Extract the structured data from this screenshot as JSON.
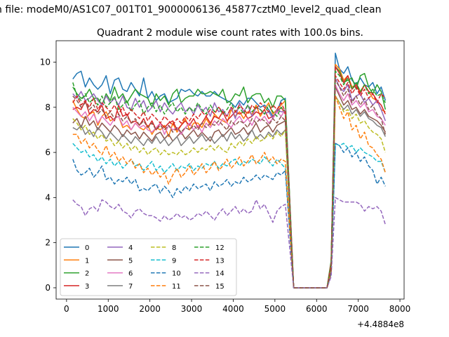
{
  "figure": {
    "suptitle": "n file: modeM0/AS1C07_001T01_9000006136_45877cztM0_level2_quad_clean",
    "title": "Quadrant 2 module wise count rates with 100.0s bins.",
    "offset_label": "+4.4884e8"
  },
  "chart_data": {
    "type": "line",
    "title": "Quadrant 2 module wise count rates with 100.0s bins.",
    "xlabel": "",
    "ylabel": "",
    "x_offset": 448840000,
    "xlim": [
      -250,
      8100
    ],
    "ylim": [
      -0.5,
      10.95
    ],
    "xticks": [
      0,
      1000,
      2000,
      3000,
      4000,
      5000,
      6000,
      7000,
      8000
    ],
    "yticks": [
      0,
      2,
      4,
      6,
      8,
      10
    ],
    "grid": false,
    "legend": {
      "placement": "lower-left",
      "columns": 4
    },
    "x": [
      150,
      250,
      350,
      450,
      550,
      650,
      750,
      850,
      950,
      1050,
      1150,
      1250,
      1350,
      1450,
      1550,
      1650,
      1750,
      1850,
      1950,
      2050,
      2150,
      2250,
      2350,
      2450,
      2550,
      2650,
      2750,
      2850,
      2950,
      3050,
      3150,
      3250,
      3350,
      3450,
      3550,
      3650,
      3750,
      3850,
      3950,
      4050,
      4150,
      4250,
      4350,
      4450,
      4550,
      4650,
      4750,
      4850,
      4950,
      5050,
      5150,
      5250,
      5450,
      6250,
      6350,
      6450,
      6550,
      6650,
      6750,
      6850,
      6950,
      7050,
      7150,
      7250,
      7350,
      7450,
      7550,
      7650
    ],
    "series": [
      {
        "name": "0",
        "color": "#1f77b4",
        "dash": false,
        "values": [
          9.25,
          9.5,
          9.6,
          8.9,
          9.3,
          9.0,
          8.8,
          9.0,
          9.4,
          8.6,
          9.2,
          9.3,
          8.8,
          8.7,
          9.1,
          8.8,
          8.5,
          9.3,
          8.4,
          8.7,
          8.3,
          8.5,
          8.6,
          8.2,
          8.3,
          8.4,
          8.8,
          8.7,
          8.8,
          8.6,
          8.5,
          8.7,
          8.5,
          8.5,
          8.7,
          8.5,
          8.4,
          8.3,
          8.2,
          8.0,
          8.3,
          8.1,
          8.4,
          8.4,
          8.2,
          8.0,
          8.1,
          7.9,
          7.6,
          7.8,
          8.3,
          8.4,
          0.0,
          0.0,
          1.0,
          10.4,
          9.7,
          9.5,
          9.8,
          9.2,
          9.0,
          9.3,
          9.0,
          8.9,
          9.1,
          8.6,
          8.9,
          8.3
        ]
      },
      {
        "name": "1",
        "color": "#ff7f0e",
        "dash": false,
        "values": [
          8.3,
          7.9,
          7.6,
          7.5,
          7.7,
          7.8,
          7.2,
          7.6,
          7.8,
          7.4,
          7.5,
          7.6,
          7.1,
          7.2,
          7.0,
          7.3,
          7.1,
          7.0,
          7.2,
          6.8,
          7.1,
          7.0,
          7.2,
          6.7,
          7.3,
          6.9,
          7.2,
          7.5,
          7.0,
          7.3,
          7.3,
          7.1,
          7.5,
          7.2,
          7.7,
          7.5,
          7.4,
          7.3,
          7.9,
          7.6,
          7.8,
          7.5,
          7.8,
          7.7,
          8.1,
          7.6,
          7.9,
          8.2,
          7.7,
          7.9,
          8.1,
          8.3,
          0.0,
          0.0,
          1.0,
          9.9,
          9.7,
          9.2,
          9.4,
          8.9,
          9.0,
          8.7,
          9.0,
          8.7,
          8.4,
          8.3,
          7.9,
          7.8
        ]
      },
      {
        "name": "2",
        "color": "#2ca02c",
        "dash": false,
        "values": [
          8.9,
          8.6,
          8.4,
          8.5,
          8.8,
          8.4,
          8.4,
          8.1,
          8.6,
          8.3,
          8.9,
          8.4,
          8.6,
          8.2,
          8.5,
          8.8,
          8.6,
          8.5,
          8.4,
          8.0,
          8.6,
          8.3,
          8.5,
          8.1,
          8.6,
          8.8,
          8.2,
          8.4,
          8.5,
          8.5,
          8.8,
          8.6,
          8.6,
          8.7,
          8.6,
          8.5,
          8.8,
          8.2,
          8.3,
          8.6,
          8.5,
          8.9,
          8.2,
          8.5,
          8.6,
          8.6,
          8.2,
          8.4,
          8.0,
          8.5,
          8.5,
          8.3,
          0.0,
          0.0,
          1.2,
          9.8,
          9.6,
          9.1,
          9.2,
          9.3,
          8.8,
          9.4,
          9.5,
          8.9,
          8.6,
          9.0,
          8.7,
          7.9
        ]
      },
      {
        "name": "3",
        "color": "#d62728",
        "dash": false,
        "values": [
          7.9,
          8.0,
          7.9,
          8.3,
          7.7,
          7.9,
          7.8,
          8.1,
          7.5,
          7.6,
          7.4,
          8.1,
          7.6,
          7.7,
          7.3,
          7.4,
          7.2,
          7.5,
          7.1,
          7.4,
          7.0,
          7.3,
          7.1,
          7.3,
          7.4,
          7.0,
          7.2,
          7.4,
          7.2,
          7.5,
          7.1,
          7.3,
          7.6,
          7.3,
          7.6,
          7.5,
          7.8,
          7.4,
          7.6,
          7.8,
          7.7,
          7.8,
          7.5,
          7.6,
          7.8,
          7.7,
          7.9,
          7.5,
          7.6,
          7.8,
          8.0,
          7.7,
          0.0,
          0.0,
          1.1,
          9.8,
          9.5,
          9.1,
          9.4,
          8.8,
          9.0,
          8.6,
          9.0,
          8.7,
          8.6,
          8.3,
          8.1,
          7.7
        ]
      },
      {
        "name": "4",
        "color": "#9467bd",
        "dash": false,
        "values": [
          8.6,
          8.4,
          8.7,
          8.3,
          8.4,
          8.6,
          8.3,
          8.1,
          8.5,
          8.2,
          8.4,
          8.1,
          8.5,
          8.0,
          7.9,
          8.4,
          8.0,
          8.3,
          7.8,
          8.0,
          8.3,
          7.8,
          8.2,
          7.9,
          7.7,
          8.0,
          8.2,
          7.8,
          8.0,
          7.7,
          8.1,
          7.8,
          8.0,
          7.6,
          8.2,
          7.8,
          7.9,
          7.6,
          8.0,
          7.5,
          8.2,
          7.8,
          8.1,
          7.6,
          8.0,
          7.9,
          7.7,
          7.8,
          7.5,
          7.9,
          7.8,
          7.8,
          0.0,
          0.0,
          0.9,
          9.3,
          8.9,
          8.7,
          9.0,
          8.3,
          8.5,
          8.6,
          8.2,
          8.4,
          8.1,
          8.3,
          7.9,
          7.4
        ]
      },
      {
        "name": "5",
        "color": "#8c564b",
        "dash": false,
        "values": [
          7.3,
          7.5,
          7.1,
          7.6,
          7.2,
          7.4,
          7.0,
          7.3,
          7.1,
          6.9,
          7.2,
          7.0,
          6.7,
          7.0,
          6.8,
          6.9,
          6.6,
          6.9,
          6.7,
          6.5,
          6.8,
          6.9,
          6.6,
          6.8,
          6.5,
          6.7,
          6.9,
          6.6,
          6.8,
          7.0,
          6.7,
          6.9,
          6.7,
          6.5,
          6.9,
          7.0,
          6.7,
          6.9,
          7.1,
          6.8,
          6.9,
          7.1,
          6.8,
          7.0,
          7.3,
          6.9,
          7.1,
          7.2,
          6.9,
          7.2,
          7.3,
          7.4,
          0.0,
          0.0,
          0.8,
          8.9,
          8.5,
          8.1,
          8.3,
          7.9,
          8.0,
          7.7,
          7.9,
          7.6,
          7.5,
          7.4,
          7.2,
          6.9
        ]
      },
      {
        "name": "6",
        "color": "#e377c2",
        "dash": false,
        "values": [
          8.0,
          7.8,
          7.6,
          7.8,
          7.4,
          7.7,
          7.3,
          7.6,
          7.4,
          7.2,
          7.5,
          7.6,
          7.2,
          7.4,
          7.0,
          7.3,
          7.1,
          7.2,
          7.0,
          6.9,
          7.1,
          7.3,
          6.8,
          7.2,
          7.0,
          7.1,
          6.8,
          7.1,
          7.3,
          7.0,
          7.2,
          6.9,
          7.3,
          7.1,
          7.4,
          7.2,
          7.5,
          7.3,
          7.1,
          7.4,
          7.6,
          7.3,
          7.5,
          7.2,
          7.6,
          7.4,
          7.6,
          7.3,
          7.5,
          7.8,
          7.6,
          7.9,
          0.0,
          0.0,
          0.9,
          9.0,
          8.6,
          8.3,
          8.6,
          8.1,
          8.3,
          8.0,
          8.2,
          7.8,
          7.9,
          7.6,
          7.5,
          7.2
        ]
      },
      {
        "name": "7",
        "color": "#7f7f7f",
        "dash": false,
        "values": [
          7.1,
          7.0,
          7.2,
          6.8,
          7.0,
          6.7,
          7.1,
          6.9,
          6.6,
          6.9,
          6.7,
          6.5,
          6.8,
          6.6,
          6.4,
          6.7,
          6.5,
          6.3,
          6.6,
          6.4,
          6.7,
          6.4,
          6.6,
          6.3,
          6.5,
          6.7,
          6.3,
          6.5,
          6.7,
          6.4,
          6.6,
          6.8,
          6.5,
          6.7,
          6.4,
          6.6,
          6.8,
          6.5,
          6.9,
          6.6,
          6.8,
          6.5,
          6.7,
          7.0,
          6.6,
          6.8,
          6.6,
          6.9,
          6.7,
          7.0,
          6.8,
          7.0,
          0.0,
          0.0,
          0.7,
          8.5,
          8.2,
          7.9,
          8.1,
          7.7,
          7.9,
          7.6,
          7.8,
          7.5,
          7.4,
          7.2,
          7.1,
          6.7
        ]
      },
      {
        "name": "8",
        "color": "#bcbd22",
        "dash": true,
        "values": [
          7.5,
          7.3,
          7.0,
          7.2,
          6.8,
          6.9,
          6.6,
          6.8,
          6.5,
          6.6,
          6.3,
          6.5,
          6.2,
          6.4,
          6.1,
          6.3,
          6.0,
          6.2,
          5.9,
          6.1,
          6.2,
          5.9,
          6.1,
          5.9,
          6.0,
          5.9,
          6.1,
          5.9,
          6.0,
          6.2,
          6.0,
          6.2,
          6.1,
          6.3,
          6.1,
          6.3,
          6.1,
          6.0,
          6.4,
          6.2,
          6.5,
          6.3,
          6.6,
          6.4,
          6.7,
          6.5,
          6.6,
          6.8,
          6.6,
          6.9,
          6.7,
          7.0,
          0.0,
          0.0,
          0.8,
          8.5,
          8.2,
          7.8,
          7.9,
          7.5,
          7.7,
          7.3,
          7.4,
          7.1,
          6.9,
          6.8,
          6.6,
          6.0
        ]
      },
      {
        "name": "9",
        "color": "#17becf",
        "dash": true,
        "values": [
          6.4,
          6.2,
          6.0,
          6.1,
          5.8,
          5.9,
          5.6,
          5.8,
          5.5,
          5.7,
          5.4,
          5.6,
          5.3,
          5.5,
          5.7,
          5.4,
          5.5,
          5.2,
          5.4,
          5.6,
          5.2,
          5.4,
          5.1,
          5.3,
          5.5,
          5.2,
          5.4,
          5.3,
          5.5,
          5.2,
          5.4,
          5.3,
          5.5,
          5.4,
          5.6,
          5.3,
          5.5,
          5.4,
          5.6,
          5.7,
          5.4,
          5.6,
          5.5,
          5.7,
          5.6,
          5.5,
          5.8,
          5.6,
          5.4,
          5.7,
          5.5,
          5.3,
          0.0,
          0.0,
          0.7,
          6.4,
          6.3,
          6.4,
          6.2,
          6.3,
          6.0,
          6.2,
          6.0,
          5.9,
          5.8,
          5.6,
          5.6,
          5.1
        ]
      },
      {
        "name": "10",
        "color": "#1f77b4",
        "dash": true,
        "values": [
          5.7,
          5.2,
          5.0,
          5.1,
          5.3,
          4.9,
          5.1,
          5.4,
          4.8,
          4.9,
          4.6,
          4.8,
          4.7,
          4.9,
          4.6,
          4.8,
          4.3,
          4.4,
          4.3,
          4.5,
          4.6,
          4.2,
          4.5,
          4.3,
          4.0,
          4.4,
          4.2,
          4.5,
          4.3,
          4.6,
          4.4,
          4.5,
          4.6,
          4.3,
          4.7,
          4.5,
          4.6,
          4.8,
          4.5,
          4.7,
          4.6,
          4.9,
          4.7,
          4.8,
          5.0,
          4.8,
          5.0,
          4.9,
          4.8,
          5.1,
          5.0,
          5.2,
          0.0,
          0.0,
          0.6,
          6.4,
          6.3,
          6.0,
          6.2,
          5.8,
          6.0,
          5.6,
          5.8,
          5.4,
          5.2,
          4.6,
          4.9,
          4.5
        ]
      },
      {
        "name": "11",
        "color": "#ff7f0e",
        "dash": true,
        "values": [
          6.8,
          6.8,
          6.4,
          6.6,
          6.2,
          6.4,
          6.1,
          5.9,
          6.3,
          5.8,
          6.0,
          5.6,
          5.8,
          5.5,
          5.7,
          5.3,
          5.5,
          5.1,
          5.3,
          5.0,
          5.2,
          4.9,
          5.1,
          4.6,
          5.0,
          5.3,
          4.9,
          5.1,
          5.4,
          5.0,
          5.2,
          5.5,
          5.1,
          5.3,
          5.6,
          5.2,
          5.4,
          5.7,
          5.3,
          5.5,
          5.8,
          5.4,
          5.6,
          5.9,
          5.5,
          5.7,
          6.0,
          5.6,
          5.8,
          5.5,
          5.7,
          5.6,
          0.0,
          0.0,
          0.7,
          8.5,
          8.0,
          7.5,
          7.8,
          7.0,
          7.2,
          6.6,
          6.9,
          6.3,
          6.2,
          5.9,
          5.7,
          5.1
        ]
      },
      {
        "name": "12",
        "color": "#2ca02c",
        "dash": true,
        "values": [
          9.1,
          8.5,
          8.3,
          8.6,
          8.2,
          8.4,
          8.1,
          8.5,
          8.0,
          8.2,
          8.5,
          7.9,
          8.1,
          8.3,
          7.8,
          8.1,
          8.3,
          7.7,
          8.0,
          8.2,
          7.8,
          8.1,
          7.7,
          8.0,
          8.2,
          7.8,
          8.0,
          7.7,
          8.0,
          7.8,
          8.2,
          7.9,
          7.7,
          8.1,
          7.8,
          8.0,
          7.7,
          7.9,
          8.2,
          7.8,
          8.0,
          7.7,
          8.1,
          7.8,
          8.0,
          7.9,
          7.7,
          8.1,
          7.8,
          7.6,
          8.0,
          7.8,
          0.0,
          0.0,
          1.0,
          9.6,
          9.4,
          9.0,
          9.3,
          8.8,
          9.1,
          8.7,
          9.0,
          8.6,
          8.8,
          8.5,
          8.6,
          8.2
        ]
      },
      {
        "name": "13",
        "color": "#d62728",
        "dash": true,
        "values": [
          8.2,
          8.5,
          8.1,
          8.3,
          8.0,
          8.4,
          7.9,
          8.2,
          8.0,
          7.8,
          8.1,
          7.7,
          8.0,
          7.6,
          7.9,
          7.7,
          7.5,
          7.8,
          7.4,
          7.7,
          7.5,
          7.3,
          7.6,
          7.4,
          7.2,
          7.5,
          7.3,
          7.6,
          7.4,
          7.7,
          7.5,
          7.8,
          7.6,
          7.9,
          7.7,
          8.0,
          7.8,
          7.6,
          8.0,
          7.8,
          8.1,
          7.9,
          7.7,
          8.1,
          7.9,
          8.2,
          8.0,
          7.8,
          8.1,
          7.9,
          8.2,
          7.8,
          0.0,
          0.0,
          0.9,
          9.4,
          9.1,
          8.8,
          9.1,
          8.6,
          8.9,
          8.5,
          8.8,
          8.4,
          8.6,
          8.2,
          8.6,
          8.4
        ]
      },
      {
        "name": "14",
        "color": "#9467bd",
        "dash": true,
        "values": [
          3.9,
          3.7,
          3.6,
          3.2,
          3.5,
          3.6,
          3.4,
          3.9,
          3.8,
          3.6,
          3.5,
          3.7,
          3.4,
          3.3,
          3.1,
          3.4,
          3.5,
          3.3,
          3.2,
          3.2,
          3.1,
          2.95,
          3.2,
          3.0,
          3.1,
          3.3,
          3.1,
          3.2,
          3.0,
          3.1,
          3.3,
          3.2,
          3.4,
          3.2,
          3.0,
          3.3,
          3.5,
          3.2,
          3.4,
          3.6,
          3.3,
          3.5,
          3.3,
          3.4,
          3.9,
          3.5,
          3.7,
          3.3,
          2.9,
          3.4,
          3.6,
          3.7,
          0.0,
          0.0,
          0.5,
          4.0,
          3.9,
          3.8,
          3.8,
          3.8,
          3.8,
          3.7,
          3.4,
          3.6,
          3.5,
          3.6,
          3.4,
          2.8
        ]
      },
      {
        "name": "15",
        "color": "#8c564b",
        "dash": true,
        "values": [
          8.5,
          8.3,
          8.0,
          8.2,
          7.9,
          8.1,
          7.7,
          7.9,
          7.6,
          7.8,
          7.5,
          7.7,
          7.4,
          7.6,
          7.3,
          7.5,
          7.2,
          7.4,
          7.1,
          7.3,
          7.0,
          7.2,
          7.0,
          7.2,
          6.9,
          7.1,
          6.9,
          7.1,
          7.0,
          7.2,
          7.0,
          7.3,
          7.1,
          7.3,
          7.2,
          7.4,
          7.2,
          7.0,
          7.4,
          7.2,
          7.4,
          7.3,
          7.1,
          7.5,
          7.3,
          7.5,
          7.4,
          7.2,
          7.5,
          7.3,
          7.6,
          7.4,
          0.0,
          0.0,
          0.8,
          9.2,
          8.9,
          8.5,
          8.8,
          8.2,
          8.5,
          8.1,
          8.4,
          7.9,
          8.1,
          7.7,
          7.5,
          6.8
        ]
      }
    ]
  }
}
